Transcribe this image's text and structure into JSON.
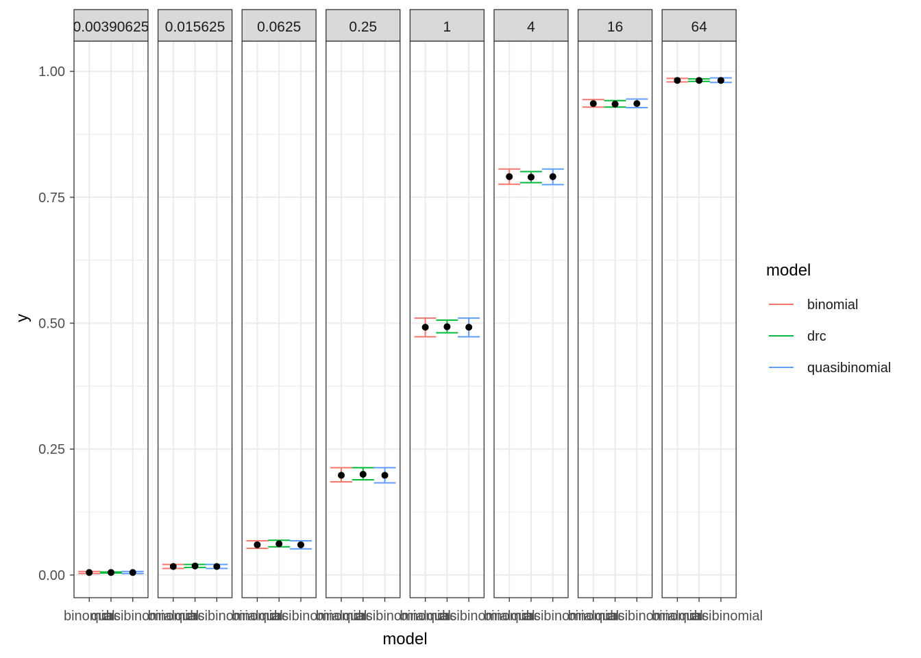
{
  "chart_data": {
    "type": "scatter",
    "facet_labels": [
      "0.00390625",
      "0.015625",
      "0.0625",
      "0.25",
      "1",
      "4",
      "16",
      "64"
    ],
    "categories": [
      "binomial",
      "drc",
      "quasibinomial"
    ],
    "x_tick_labels": [
      "binomial",
      "drc",
      "quasibinomial"
    ],
    "xlabel": "model",
    "ylabel": "y",
    "ylim": [
      -0.045,
      1.06
    ],
    "y_ticks": [
      0,
      0.25,
      0.5,
      0.75,
      1
    ],
    "y_tick_labels": [
      "0.00",
      "0.25",
      "0.50",
      "0.75",
      "1.00"
    ],
    "grid": true,
    "legend": {
      "title": "model",
      "position": "right",
      "entries": [
        "binomial",
        "drc",
        "quasibinomial"
      ]
    },
    "colors": {
      "binomial": "#F8766D",
      "drc": "#00BA38",
      "quasibinomial": "#619CFF",
      "point": "#000000",
      "strip_fill": "#D9D9D9",
      "grid": "#EBEBEB"
    },
    "series": [
      {
        "name": "binomial",
        "y": [
          0.005,
          0.017,
          0.06,
          0.198,
          0.492,
          0.791,
          0.936,
          0.982
        ],
        "ymin": [
          0.003,
          0.013,
          0.053,
          0.185,
          0.473,
          0.776,
          0.929,
          0.979
        ],
        "ymax": [
          0.007,
          0.021,
          0.068,
          0.213,
          0.51,
          0.806,
          0.944,
          0.986
        ]
      },
      {
        "name": "drc",
        "y": [
          0.005,
          0.018,
          0.062,
          0.2,
          0.493,
          0.79,
          0.935,
          0.982
        ],
        "ymin": [
          0.004,
          0.015,
          0.056,
          0.189,
          0.481,
          0.779,
          0.929,
          0.98
        ],
        "ymax": [
          0.006,
          0.021,
          0.069,
          0.213,
          0.506,
          0.801,
          0.942,
          0.985
        ]
      },
      {
        "name": "quasibinomial",
        "y": [
          0.005,
          0.017,
          0.06,
          0.198,
          0.492,
          0.791,
          0.936,
          0.982
        ],
        "ymin": [
          0.003,
          0.013,
          0.052,
          0.183,
          0.473,
          0.775,
          0.928,
          0.978
        ],
        "ymax": [
          0.007,
          0.021,
          0.068,
          0.213,
          0.51,
          0.806,
          0.945,
          0.987
        ]
      }
    ]
  }
}
